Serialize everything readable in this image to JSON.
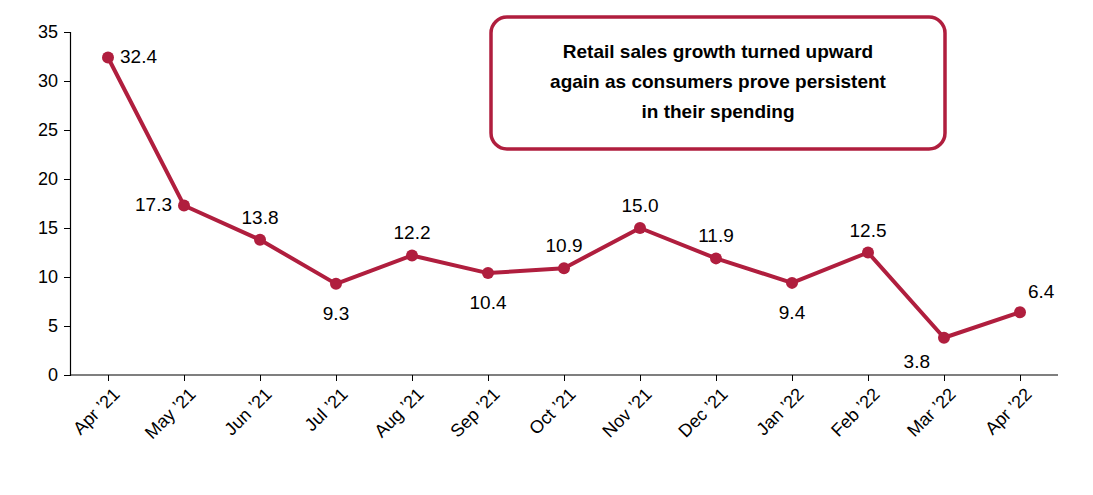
{
  "chart_data": {
    "type": "line",
    "categories": [
      "Apr ’21",
      "May ’21",
      "Jun ’21",
      "Jul ’21",
      "Aug ’21",
      "Sep ’21",
      "Oct ’21",
      "Nov ’21",
      "Dec ’21",
      "Jan ’22",
      "Feb ’22",
      "Mar ’22",
      "Apr ’22"
    ],
    "values": [
      32.4,
      17.3,
      13.8,
      9.3,
      12.2,
      10.4,
      10.9,
      15.0,
      11.9,
      9.4,
      12.5,
      3.8,
      6.4
    ],
    "value_labels": [
      "32.4",
      "17.3",
      "13.8",
      "9.3",
      "12.2",
      "10.4",
      "10.9",
      "15.0",
      "11.9",
      "9.4",
      "12.5",
      "3.8",
      "6.4"
    ],
    "color": "#b01e3e",
    "marker": "circle",
    "data_labels": true,
    "grid": false,
    "ylim": [
      0,
      35
    ],
    "yticks": [
      0,
      5,
      10,
      15,
      20,
      25,
      30,
      35
    ],
    "annotation": [
      "Retail sales growth turned upward",
      "again as consumers prove persistent",
      "in their spending"
    ]
  }
}
